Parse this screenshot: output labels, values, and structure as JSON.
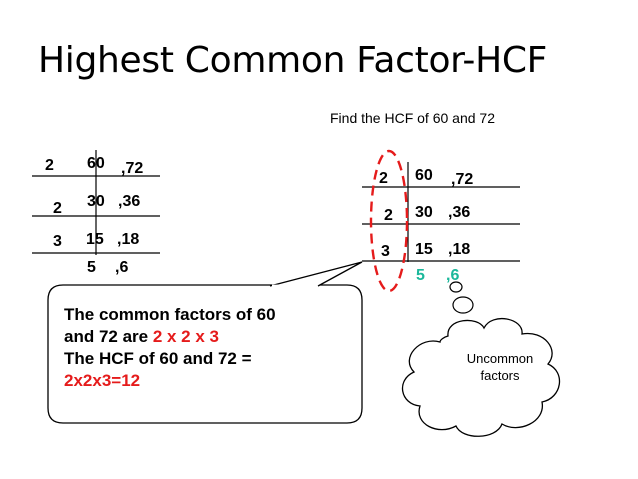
{
  "title": "Highest Common Factor-HCF",
  "question": "Find the HCF of 60 and 72",
  "left_division": {
    "rows": [
      {
        "divisor": "2",
        "a": "60",
        "b": ",72"
      },
      {
        "divisor": "2",
        "a": "30",
        "b": ",36"
      },
      {
        "divisor": "3",
        "a": "15",
        "b": ",18"
      }
    ],
    "remainder": {
      "a": "5",
      "b": ",6"
    }
  },
  "right_division": {
    "rows": [
      {
        "divisor": "2",
        "a": "60",
        "b": ",72"
      },
      {
        "divisor": "2",
        "a": "30",
        "b": ",36"
      },
      {
        "divisor": "3",
        "a": "15",
        "b": ",18"
      }
    ],
    "remainder": {
      "a": "5",
      "b": ",6"
    }
  },
  "speech_bubble": {
    "line1": "The common factors of 60",
    "line2_prefix": "and 72 are ",
    "line2_highlight": "2 x 2 x 3",
    "line3": "The HCF of 60 and 72 =",
    "line4": "2x2x3=12"
  },
  "thought_cloud": {
    "line1": "Uncommon",
    "line2": "factors"
  },
  "colors": {
    "highlight_red": "#e51b1b",
    "remainder_green": "#1bb89b",
    "ellipse_red": "#e51b1b"
  }
}
